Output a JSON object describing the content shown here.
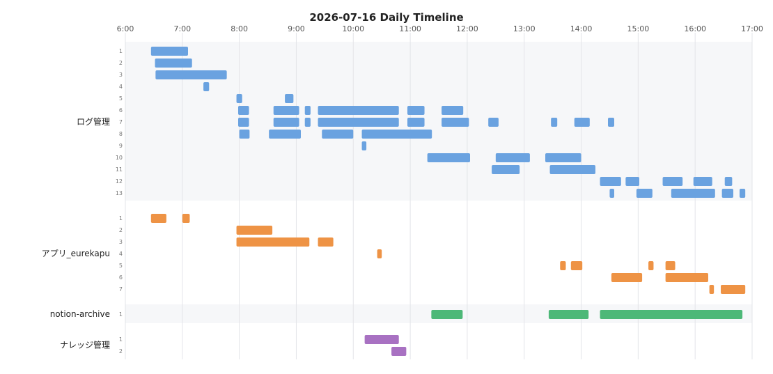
{
  "chart_data": {
    "type": "timeline",
    "title": "2026-07-16 Daily Timeline",
    "x_ticks": [
      "6:00",
      "7:00",
      "8:00",
      "9:00",
      "10:00",
      "11:00",
      "12:00",
      "13:00",
      "14:00",
      "15:00",
      "16:00",
      "17:00"
    ],
    "x_range_hours": [
      6,
      17
    ],
    "grid": true,
    "groups": [
      {
        "name": "ログ管理",
        "color": "#6aa2e0",
        "shaded": true,
        "lanes": [
          {
            "label": "1",
            "bars": [
              [
                6.45,
                7.1
              ]
            ]
          },
          {
            "label": "2",
            "bars": [
              [
                6.52,
                7.17
              ]
            ]
          },
          {
            "label": "3",
            "bars": [
              [
                6.53,
                7.78
              ]
            ]
          },
          {
            "label": "4",
            "bars": [
              [
                7.37,
                7.47
              ]
            ]
          },
          {
            "label": "5",
            "bars": [
              [
                7.95,
                8.05
              ],
              [
                8.8,
                8.95
              ]
            ]
          },
          {
            "label": "6",
            "bars": [
              [
                7.98,
                8.17
              ],
              [
                8.6,
                9.05
              ],
              [
                9.15,
                9.25
              ],
              [
                9.38,
                10.8
              ],
              [
                10.95,
                11.25
              ],
              [
                11.55,
                11.93
              ]
            ]
          },
          {
            "label": "7",
            "bars": [
              [
                7.98,
                8.17
              ],
              [
                8.6,
                9.05
              ],
              [
                9.15,
                9.25
              ],
              [
                9.38,
                10.8
              ],
              [
                10.95,
                11.25
              ],
              [
                11.55,
                12.03
              ],
              [
                12.37,
                12.55
              ],
              [
                13.47,
                13.58
              ],
              [
                13.88,
                14.15
              ],
              [
                14.47,
                14.58
              ]
            ]
          },
          {
            "label": "8",
            "bars": [
              [
                8.0,
                8.18
              ],
              [
                8.52,
                9.08
              ],
              [
                9.45,
                10.0
              ],
              [
                10.15,
                11.38
              ]
            ]
          },
          {
            "label": "9",
            "bars": [
              [
                10.15,
                10.23
              ]
            ]
          },
          {
            "label": "10",
            "bars": [
              [
                11.3,
                12.05
              ],
              [
                12.5,
                13.1
              ],
              [
                13.37,
                14.0
              ]
            ]
          },
          {
            "label": "11",
            "bars": [
              [
                12.43,
                12.92
              ],
              [
                13.45,
                14.25
              ]
            ]
          },
          {
            "label": "12",
            "bars": [
              [
                14.33,
                14.7
              ],
              [
                14.78,
                15.02
              ],
              [
                15.43,
                15.78
              ],
              [
                15.97,
                16.3
              ],
              [
                16.52,
                16.65
              ]
            ]
          },
          {
            "label": "13",
            "bars": [
              [
                14.5,
                14.58
              ],
              [
                14.97,
                15.25
              ],
              [
                15.58,
                16.35
              ],
              [
                16.47,
                16.67
              ],
              [
                16.78,
                16.88
              ]
            ]
          }
        ]
      },
      {
        "name": "アプリ_eurekapu",
        "color": "#ee9345",
        "shaded": false,
        "lanes": [
          {
            "label": "1",
            "bars": [
              [
                6.45,
                6.72
              ],
              [
                7.0,
                7.13
              ]
            ]
          },
          {
            "label": "2",
            "bars": [
              [
                7.95,
                8.58
              ]
            ]
          },
          {
            "label": "3",
            "bars": [
              [
                7.95,
                9.23
              ],
              [
                9.38,
                9.65
              ]
            ]
          },
          {
            "label": "4",
            "bars": [
              [
                10.42,
                10.5
              ]
            ]
          },
          {
            "label": "5",
            "bars": [
              [
                13.63,
                13.73
              ],
              [
                13.82,
                14.02
              ],
              [
                15.18,
                15.27
              ],
              [
                15.48,
                15.65
              ]
            ]
          },
          {
            "label": "6",
            "bars": [
              [
                14.53,
                15.07
              ],
              [
                15.48,
                16.23
              ]
            ]
          },
          {
            "label": "7",
            "bars": [
              [
                16.25,
                16.33
              ],
              [
                16.45,
                16.88
              ]
            ]
          }
        ]
      },
      {
        "name": "notion-archive",
        "color": "#4db878",
        "shaded": true,
        "lanes": [
          {
            "label": "1",
            "bars": [
              [
                11.37,
                11.92
              ],
              [
                13.43,
                14.13
              ],
              [
                14.33,
                16.83
              ]
            ]
          }
        ]
      },
      {
        "name": "ナレッジ管理",
        "color": "#a871c2",
        "shaded": false,
        "lanes": [
          {
            "label": "1",
            "bars": [
              [
                10.2,
                10.8
              ]
            ]
          },
          {
            "label": "2",
            "bars": [
              [
                10.67,
                10.93
              ]
            ]
          }
        ]
      }
    ]
  }
}
